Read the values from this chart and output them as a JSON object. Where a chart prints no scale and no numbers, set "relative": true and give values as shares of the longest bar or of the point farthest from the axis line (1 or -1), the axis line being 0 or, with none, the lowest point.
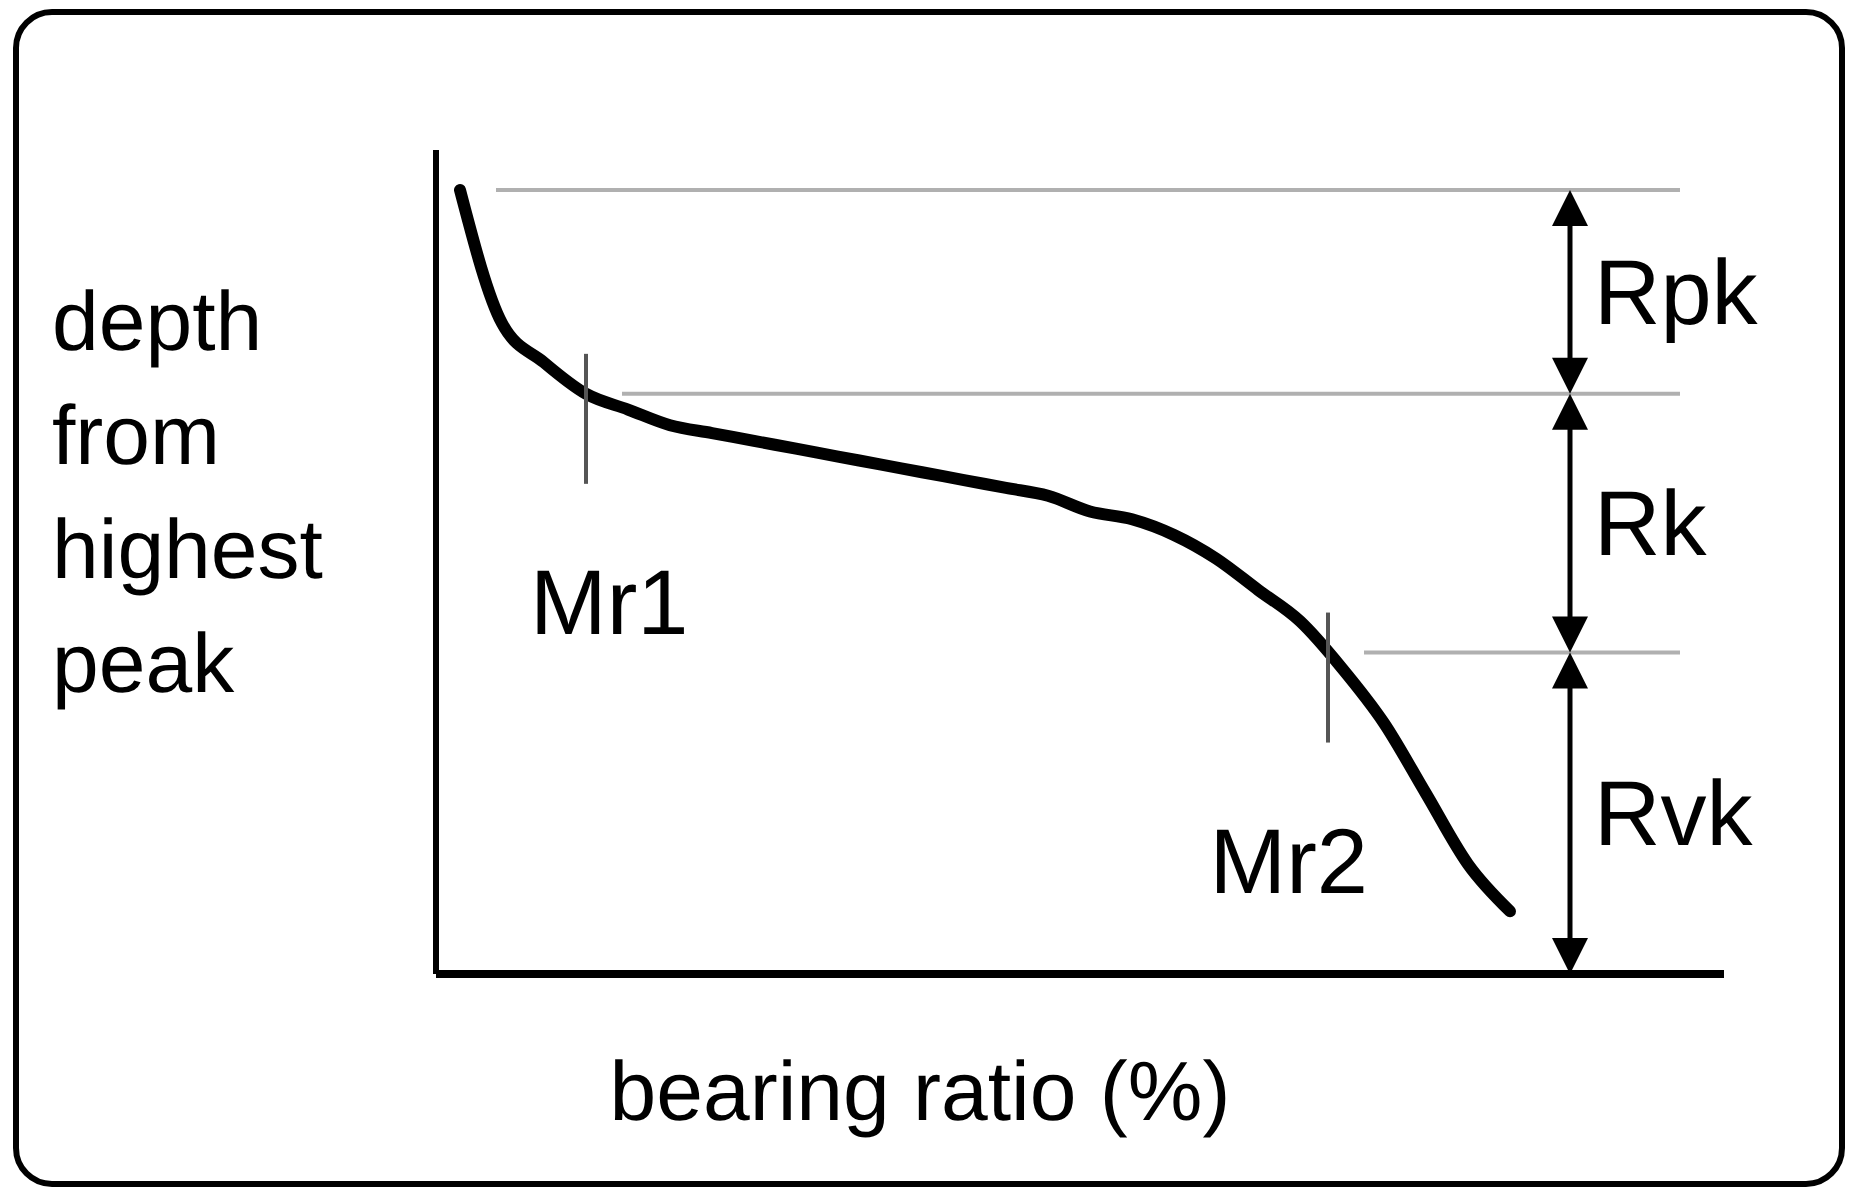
{
  "chart_data": {
    "type": "line",
    "relative": true,
    "xlabel": "bearing ratio (%)",
    "ylabel": "depth from highest peak",
    "categories": [
      null,
      null,
      null,
      null,
      null,
      null,
      null,
      null,
      null,
      null,
      null,
      null,
      null,
      null,
      null,
      null,
      null,
      null,
      null,
      null,
      null,
      null,
      null,
      null,
      null,
      null
    ],
    "series": [
      {
        "color": "#000000",
        "values": [
          1.0,
          0.83,
          0.78,
          0.74,
          0.72,
          0.7,
          0.69,
          0.68,
          0.67,
          0.66,
          0.65,
          0.64,
          0.63,
          0.62,
          0.61,
          0.59,
          0.58,
          0.56,
          0.53,
          0.49,
          0.45,
          0.39,
          0.32,
          0.23,
          0.14,
          0.08
        ]
      }
    ],
    "ref_lines": [
      {
        "axis": "y",
        "value": 1.0,
        "color": "#b0b0b0"
      },
      {
        "axis": "y",
        "value": 0.74,
        "color": "#b0b0b0"
      },
      {
        "axis": "y",
        "value": 0.41,
        "color": "#b0b0b0"
      }
    ],
    "annotations": [
      "Mr1",
      "Mr2",
      "Rpk",
      "Rk",
      "Rvk"
    ]
  }
}
